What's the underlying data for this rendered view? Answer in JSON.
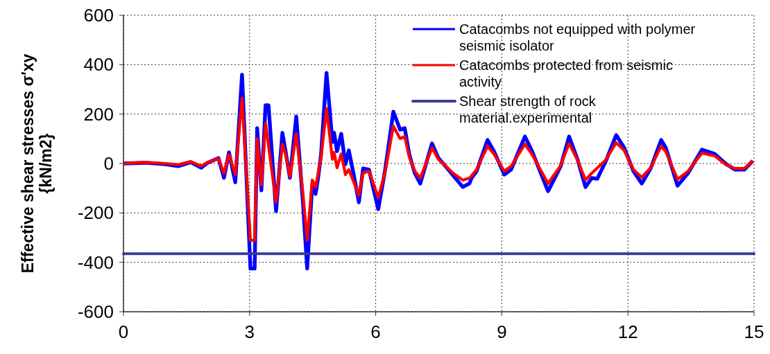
{
  "chart_data": {
    "type": "line",
    "ylabel": "Effective shear stresses σ′xy {kN/m2}",
    "xlim": [
      0,
      15
    ],
    "xticks": [
      0,
      3,
      6,
      9,
      12,
      15
    ],
    "ylim": [
      -600,
      600
    ],
    "yticks": [
      -600,
      -400,
      -200,
      0,
      200,
      400,
      600
    ],
    "grid": true,
    "legend": "top right",
    "line_style": "solid",
    "series": [
      {
        "name": "Catacombs not equipped with polymer seismic isolator",
        "color": "#0000ff",
        "x": [
          0,
          0.5,
          1.0,
          1.3,
          1.6,
          1.85,
          2.0,
          2.26,
          2.39,
          2.51,
          2.66,
          2.82,
          3.02,
          3.12,
          3.18,
          3.28,
          3.38,
          3.45,
          3.63,
          3.78,
          3.86,
          3.96,
          4.11,
          4.27,
          4.37,
          4.49,
          4.57,
          4.63,
          4.7,
          4.83,
          4.97,
          5.01,
          5.08,
          5.18,
          5.28,
          5.36,
          5.48,
          5.6,
          5.7,
          5.84,
          6.06,
          6.22,
          6.42,
          6.58,
          6.69,
          6.8,
          6.93,
          7.06,
          7.34,
          7.49,
          7.62,
          7.84,
          8.07,
          8.23,
          8.28,
          8.4,
          8.66,
          8.81,
          9.06,
          9.22,
          9.55,
          9.71,
          10.1,
          10.4,
          10.6,
          10.8,
          10.99,
          11.14,
          11.27,
          11.47,
          11.72,
          11.91,
          12.13,
          12.33,
          12.54,
          12.79,
          12.9,
          13.18,
          13.43,
          13.76,
          14.06,
          14.34,
          14.55,
          14.77,
          14.97
        ],
        "values": [
          0,
          3,
          -3,
          -11,
          5,
          -17,
          3,
          22,
          -58,
          45,
          -76,
          360,
          -425,
          -425,
          143,
          -109,
          236,
          236,
          -193,
          124,
          45,
          -58,
          190,
          -160,
          -425,
          -87,
          -123,
          -58,
          36,
          367,
          87,
          124,
          50,
          120,
          -3,
          53,
          -48,
          -157,
          -20,
          -25,
          -185,
          -31,
          210,
          137,
          143,
          36,
          -39,
          -81,
          81,
          22,
          -3,
          -48,
          -95,
          -81,
          -59,
          -31,
          95,
          50,
          -45,
          -25,
          109,
          53,
          -112,
          -11,
          109,
          17,
          -95,
          -59,
          -62,
          8,
          115,
          64,
          -31,
          -81,
          -20,
          95,
          64,
          -90,
          -39,
          56,
          39,
          -3,
          -25,
          -25,
          11
        ]
      },
      {
        "name": "Catacombs protected from seismic activity",
        "color": "#ff0000",
        "x": [
          0,
          0.5,
          1.0,
          1.3,
          1.6,
          1.85,
          2.0,
          2.26,
          2.39,
          2.51,
          2.66,
          2.82,
          3.02,
          3.12,
          3.18,
          3.28,
          3.38,
          3.63,
          3.78,
          3.86,
          3.96,
          4.11,
          4.27,
          4.37,
          4.49,
          4.57,
          4.7,
          4.83,
          4.97,
          5.01,
          5.08,
          5.18,
          5.28,
          5.36,
          5.48,
          5.6,
          5.7,
          5.84,
          6.06,
          6.22,
          6.42,
          6.58,
          6.69,
          6.8,
          6.93,
          7.06,
          7.34,
          7.49,
          7.62,
          7.84,
          8.07,
          8.23,
          8.4,
          8.66,
          8.81,
          9.06,
          9.22,
          9.55,
          9.71,
          10.1,
          10.4,
          10.6,
          10.8,
          10.99,
          11.14,
          11.47,
          11.72,
          11.91,
          12.13,
          12.33,
          12.54,
          12.79,
          12.9,
          13.18,
          13.43,
          13.76,
          14.06,
          14.34,
          14.55,
          14.77,
          14.97
        ],
        "values": [
          0,
          5,
          0,
          -5,
          8,
          -10,
          5,
          20,
          -39,
          36,
          -45,
          264,
          -311,
          -311,
          101,
          -87,
          162,
          -157,
          78,
          36,
          -53,
          120,
          -123,
          -311,
          -67,
          -95,
          25,
          222,
          17,
          45,
          -17,
          39,
          -45,
          -25,
          -76,
          -129,
          -39,
          -31,
          -137,
          -39,
          151,
          101,
          109,
          25,
          -31,
          -59,
          64,
          17,
          -3,
          -39,
          -67,
          -59,
          -25,
          70,
          39,
          -31,
          -11,
          78,
          39,
          -81,
          -8,
          81,
          14,
          -67,
          -39,
          14,
          84,
          53,
          -25,
          -56,
          -17,
          70,
          48,
          -64,
          -31,
          42,
          31,
          -6,
          -20,
          -20,
          11
        ]
      },
      {
        "name": "Shear strength of rock material.experimental",
        "color": "#3a3a9a",
        "x": [
          0,
          15
        ],
        "values": [
          -365,
          -365
        ],
        "line_style": "dotted"
      }
    ]
  }
}
